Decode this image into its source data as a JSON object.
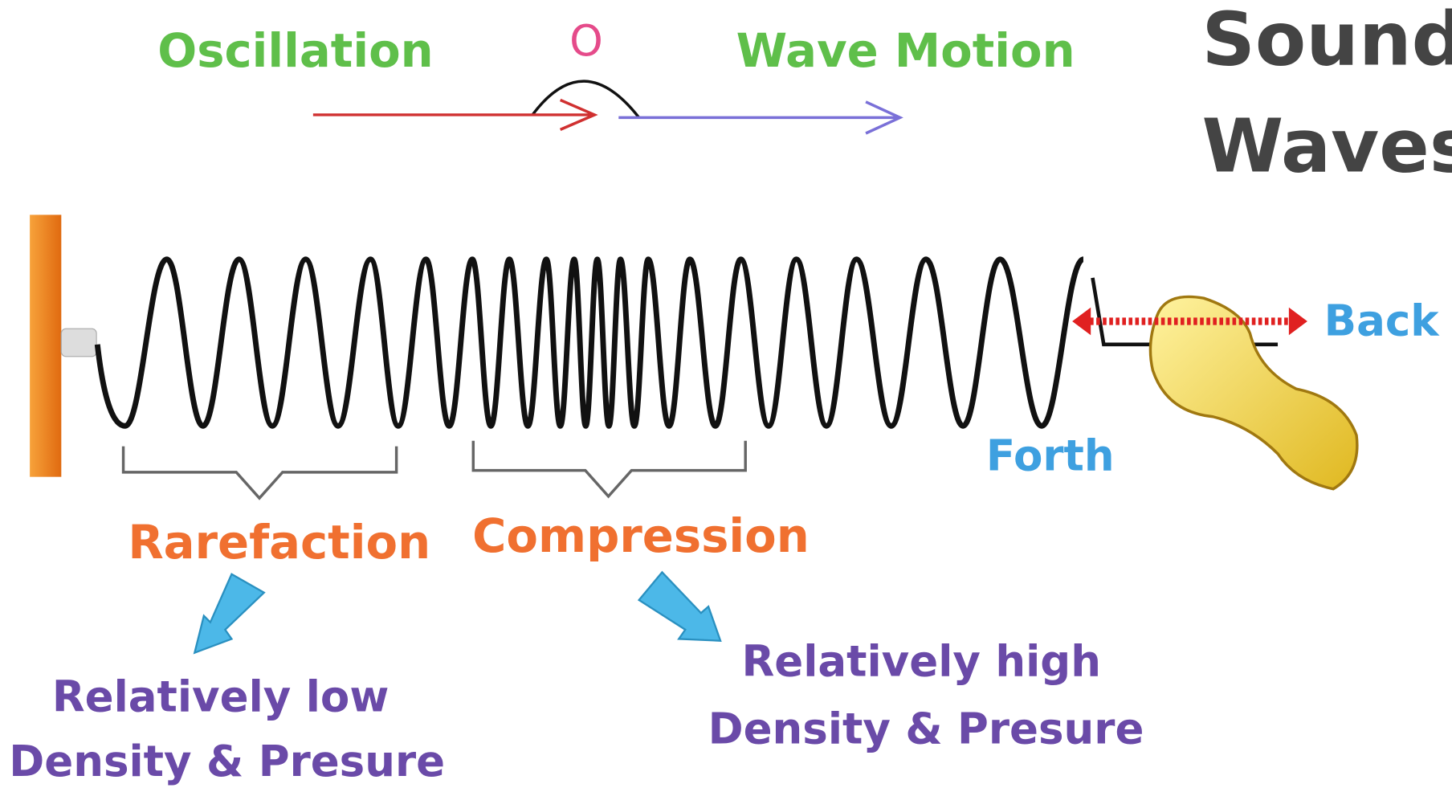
{
  "header": {
    "title_lines": [
      "Sound",
      "Waves"
    ]
  },
  "top": {
    "oscillation": "Oscillation",
    "point": "O",
    "wave_motion": "Wave Motion"
  },
  "spring": {
    "back": "Back",
    "forth": "Forth"
  },
  "regions": [
    {
      "name": "Rarefaction",
      "description": [
        "Relatively low",
        "Density & Presure"
      ]
    },
    {
      "name": "Compression",
      "description": [
        "Relatively high",
        "Density & Presure"
      ]
    }
  ]
}
